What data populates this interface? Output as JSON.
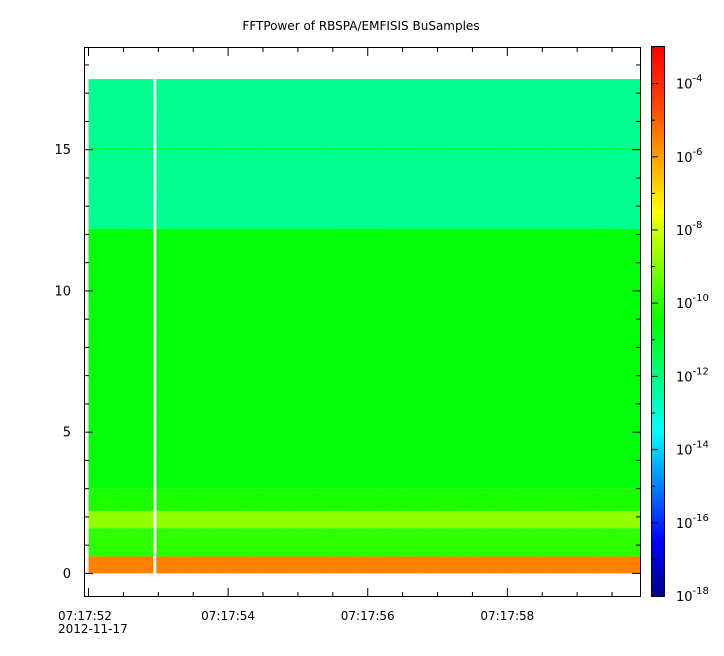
{
  "chart_data": {
    "type": "heatmap",
    "title": "FFTPower of RBSPA/EMFISIS  BuSamples",
    "xlabel": "",
    "ylabel": "",
    "x_ticks": [
      {
        "time": "07:17:52",
        "label": "07:17:52",
        "sublabel": "2012-11-17"
      },
      {
        "time": "07:17:54",
        "label": "07:17:54"
      },
      {
        "time": "07:17:56",
        "label": "07:17:56"
      },
      {
        "time": "07:17:58",
        "label": "07:17:58"
      }
    ],
    "xlim_seconds_after_07_17_52": [
      -0.05,
      7.9
    ],
    "y_ticks": [
      {
        "value": 0,
        "label": "0"
      },
      {
        "value": 5,
        "label": "5"
      },
      {
        "value": 10,
        "label": "10"
      },
      {
        "value": 15,
        "label": "15"
      }
    ],
    "ylim": [
      -0.8,
      18.6
    ],
    "y_minor_step": 1,
    "data_top": 17.5,
    "colorbar": {
      "scale": "log",
      "range": [
        1e-18,
        0.001
      ],
      "ticks": [
        {
          "base": "10",
          "exp": "-4",
          "value": 0.0001
        },
        {
          "base": "10",
          "exp": "-6",
          "value": 1e-06
        },
        {
          "base": "10",
          "exp": "-8",
          "value": 1e-08
        },
        {
          "base": "10",
          "exp": "-10",
          "value": 1e-10
        },
        {
          "base": "10",
          "exp": "-12",
          "value": 1e-12
        },
        {
          "base": "10",
          "exp": "-14",
          "value": 1e-14
        },
        {
          "base": "10",
          "exp": "-16",
          "value": 1e-16
        },
        {
          "base": "10",
          "exp": "-18",
          "value": 1e-18
        }
      ],
      "colors": [
        "#00008b",
        "#0000ff",
        "#0080ff",
        "#00ffff",
        "#00ff80",
        "#00ff00",
        "#80ff00",
        "#ffff00",
        "#ffa000",
        "#ff4000",
        "#ff0000"
      ]
    },
    "data_gaps_seconds_after_07_17_52": [
      0.95,
      7.95
    ],
    "bands": [
      {
        "f_from": 12.2,
        "f_to": 17.5,
        "power_log10": -12.2,
        "note": "upper band"
      },
      {
        "f_from": 15.0,
        "f_to": 15.05,
        "power_log10": -10.8,
        "note": "line"
      },
      {
        "f_from": 3.0,
        "f_to": 12.2,
        "power_log10": -10.6
      },
      {
        "f_from": 2.2,
        "f_to": 3.0,
        "power_log10": -10.2
      },
      {
        "f_from": 1.6,
        "f_to": 2.2,
        "power_log10": -8.8
      },
      {
        "f_from": 0.6,
        "f_to": 1.6,
        "power_log10": -10.0
      },
      {
        "f_from": 0.0,
        "f_to": 0.6,
        "power_log10": -5.5
      }
    ]
  },
  "colors": {
    "frame": "#000000",
    "gap": "#ffffff"
  }
}
